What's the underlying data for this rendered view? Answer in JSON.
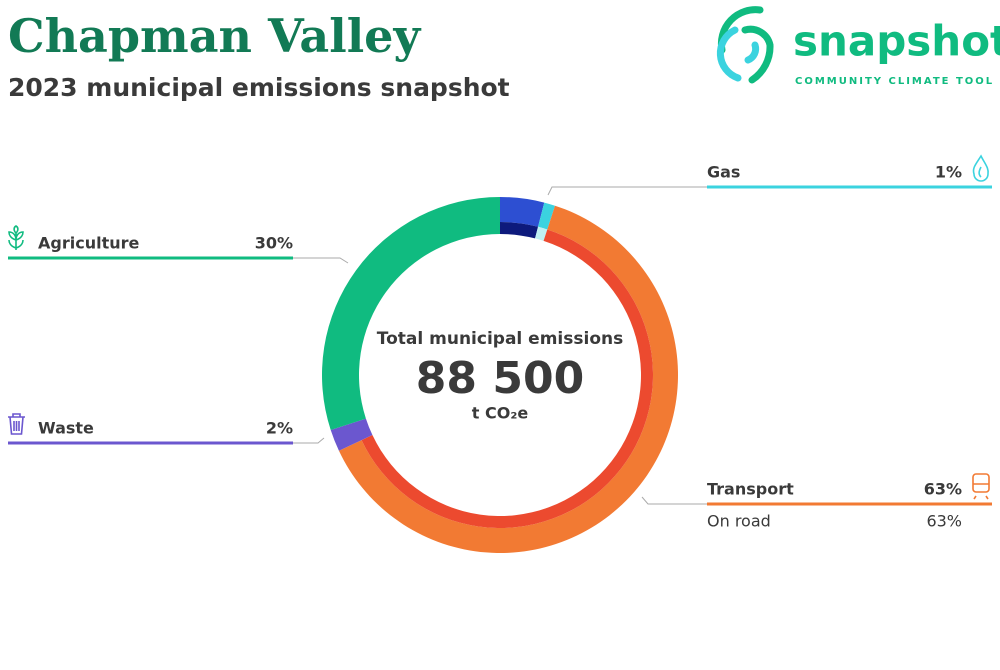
{
  "header": {
    "title": "Chapman Valley",
    "subtitle": "2023 municipal emissions snapshot"
  },
  "logo": {
    "name": "snapshot",
    "tagline": "COMMUNITY CLIMATE TOOL"
  },
  "chart_data": {
    "type": "donut",
    "center_title": "Total municipal emissions",
    "total": {
      "value": 88500,
      "label": "88 500"
    },
    "unit": "t CO₂e",
    "categories": [
      null,
      "Gas",
      "Transport",
      "Waste",
      "Agriculture"
    ],
    "values": [
      4,
      1,
      63,
      2,
      30
    ],
    "value_labels": [
      null,
      "1%",
      "63%",
      "2%",
      "30%"
    ],
    "colors": [
      "#2d4fd2",
      "#3bd3df",
      "#f27a33",
      "#6b57cf",
      "#10bb80"
    ],
    "subsectors": {
      "names": [
        null,
        null,
        "On road"
      ],
      "values": [
        4,
        1,
        63
      ],
      "value_labels": [
        null,
        null,
        "63%"
      ],
      "colors": [
        "#0d1a7c",
        "#bff0f3",
        "#ec4a2f"
      ]
    }
  }
}
